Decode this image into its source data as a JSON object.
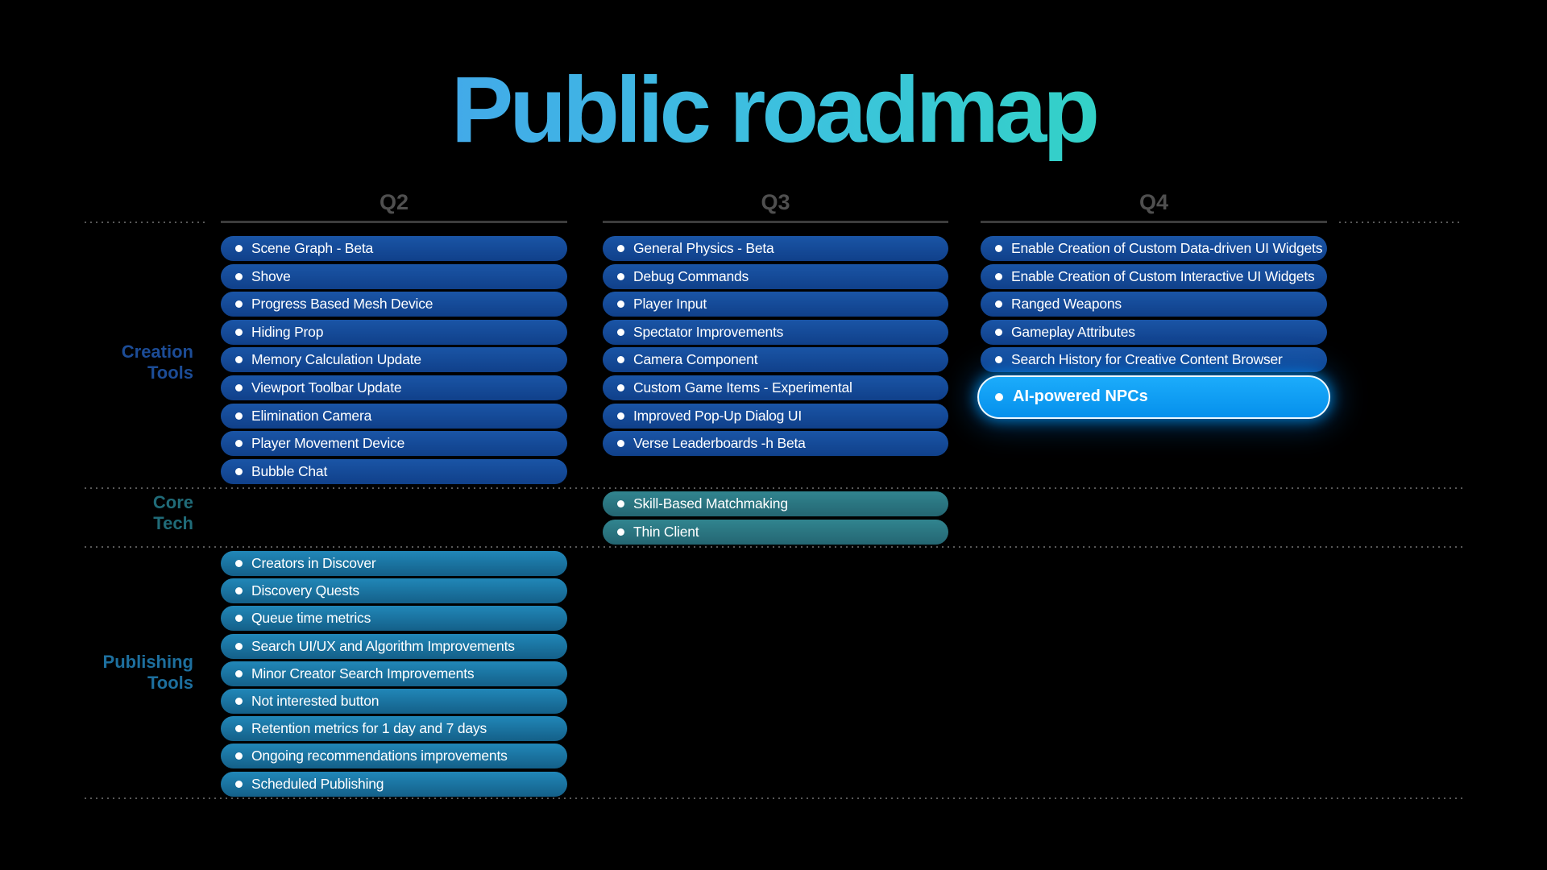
{
  "title": {
    "text": "Public roadmap"
  },
  "quarters": [
    {
      "label": "Q2"
    },
    {
      "label": "Q3"
    },
    {
      "label": "Q4"
    }
  ],
  "row_labels": {
    "creation": "Creation\nTools",
    "core": "Core\nTech",
    "publishing": "Publishing\nTools"
  },
  "creation": {
    "q2": [
      "Scene Graph - Beta",
      "Shove",
      "Progress Based Mesh Device",
      "Hiding Prop",
      "Memory Calculation Update",
      "Viewport Toolbar Update",
      "Elimination Camera",
      "Player Movement Device",
      "Bubble Chat"
    ],
    "q3": [
      "General Physics - Beta",
      "Debug Commands",
      "Player Input",
      "Spectator Improvements",
      "Camera Component",
      "Custom Game Items - Experimental",
      "Improved Pop-Up Dialog UI",
      "Verse Leaderboards -h Beta"
    ],
    "q4": [
      "Enable Creation of Custom Data-driven UI Widgets",
      "Enable Creation of Custom Interactive UI Widgets",
      "Ranged Weapons",
      "Gameplay Attributes",
      "Search History for Creative Content Browser"
    ],
    "q4_highlight": "AI-powered NPCs"
  },
  "core": {
    "q3": [
      "Skill-Based Matchmaking",
      "Thin Client"
    ]
  },
  "publishing": {
    "q2": [
      "Creators in Discover",
      "Discovery Quests",
      "Queue time metrics",
      "Search UI/UX and Algorithm Improvements",
      "Minor Creator Search Improvements",
      "Not interested button",
      "Retention metrics for 1 day and 7 days",
      "Ongoing recommendations improvements",
      "Scheduled Publishing"
    ]
  },
  "colors": {
    "background": "#000000",
    "title_gradient_start": "#4a8bf7",
    "title_gradient_mid": "#3cc2de",
    "title_gradient_end": "#25e9a3",
    "quarter_header": "#4f4f4f",
    "quarter_underline": "#3c3c3c",
    "dotted_rule": "#585858",
    "pill_blue": "#16509f",
    "pill_teal": "#2b7e8a",
    "pill_light_blue": "#1e82b2",
    "pill_highlight": "#0f9ff2",
    "pill_text": "#ffffff",
    "label_creation": "#1c4c96",
    "label_core": "#206b78",
    "label_publishing": "#1d6f9e"
  }
}
